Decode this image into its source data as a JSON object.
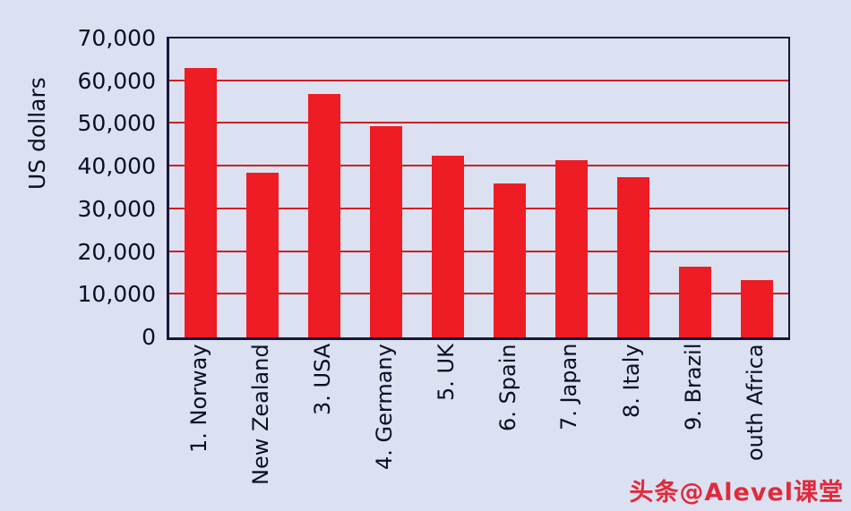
{
  "chart_data": {
    "type": "bar",
    "title": "",
    "ylabel": "US dollars",
    "xlabel": "",
    "ylim": [
      0,
      70000
    ],
    "ytick_step": 10000,
    "ytick_labels": [
      "0",
      "10,000",
      "20,000",
      "30,000",
      "40,000",
      "50,000",
      "60,000",
      "70,000"
    ],
    "categories": [
      "1. Norway",
      "New Zealand",
      "3. USA",
      "4. Germany",
      "5. UK",
      "6. Spain",
      "7. Japan",
      "8. Italy",
      "9. Brazil",
      "outh Africa"
    ],
    "values": [
      63000,
      38500,
      57000,
      49500,
      42500,
      36000,
      41500,
      37500,
      16500,
      13500
    ],
    "grid": true,
    "legend": false,
    "style": {
      "bar_color": "#ee1c25",
      "gridline_color": "#cd2026",
      "axis_color": "#16163a",
      "background_color": "#dbe1f0",
      "text_color": "#0d0d28"
    }
  },
  "watermark": {
    "text": "头条@Alevel课堂",
    "color": "#e02a3c"
  }
}
